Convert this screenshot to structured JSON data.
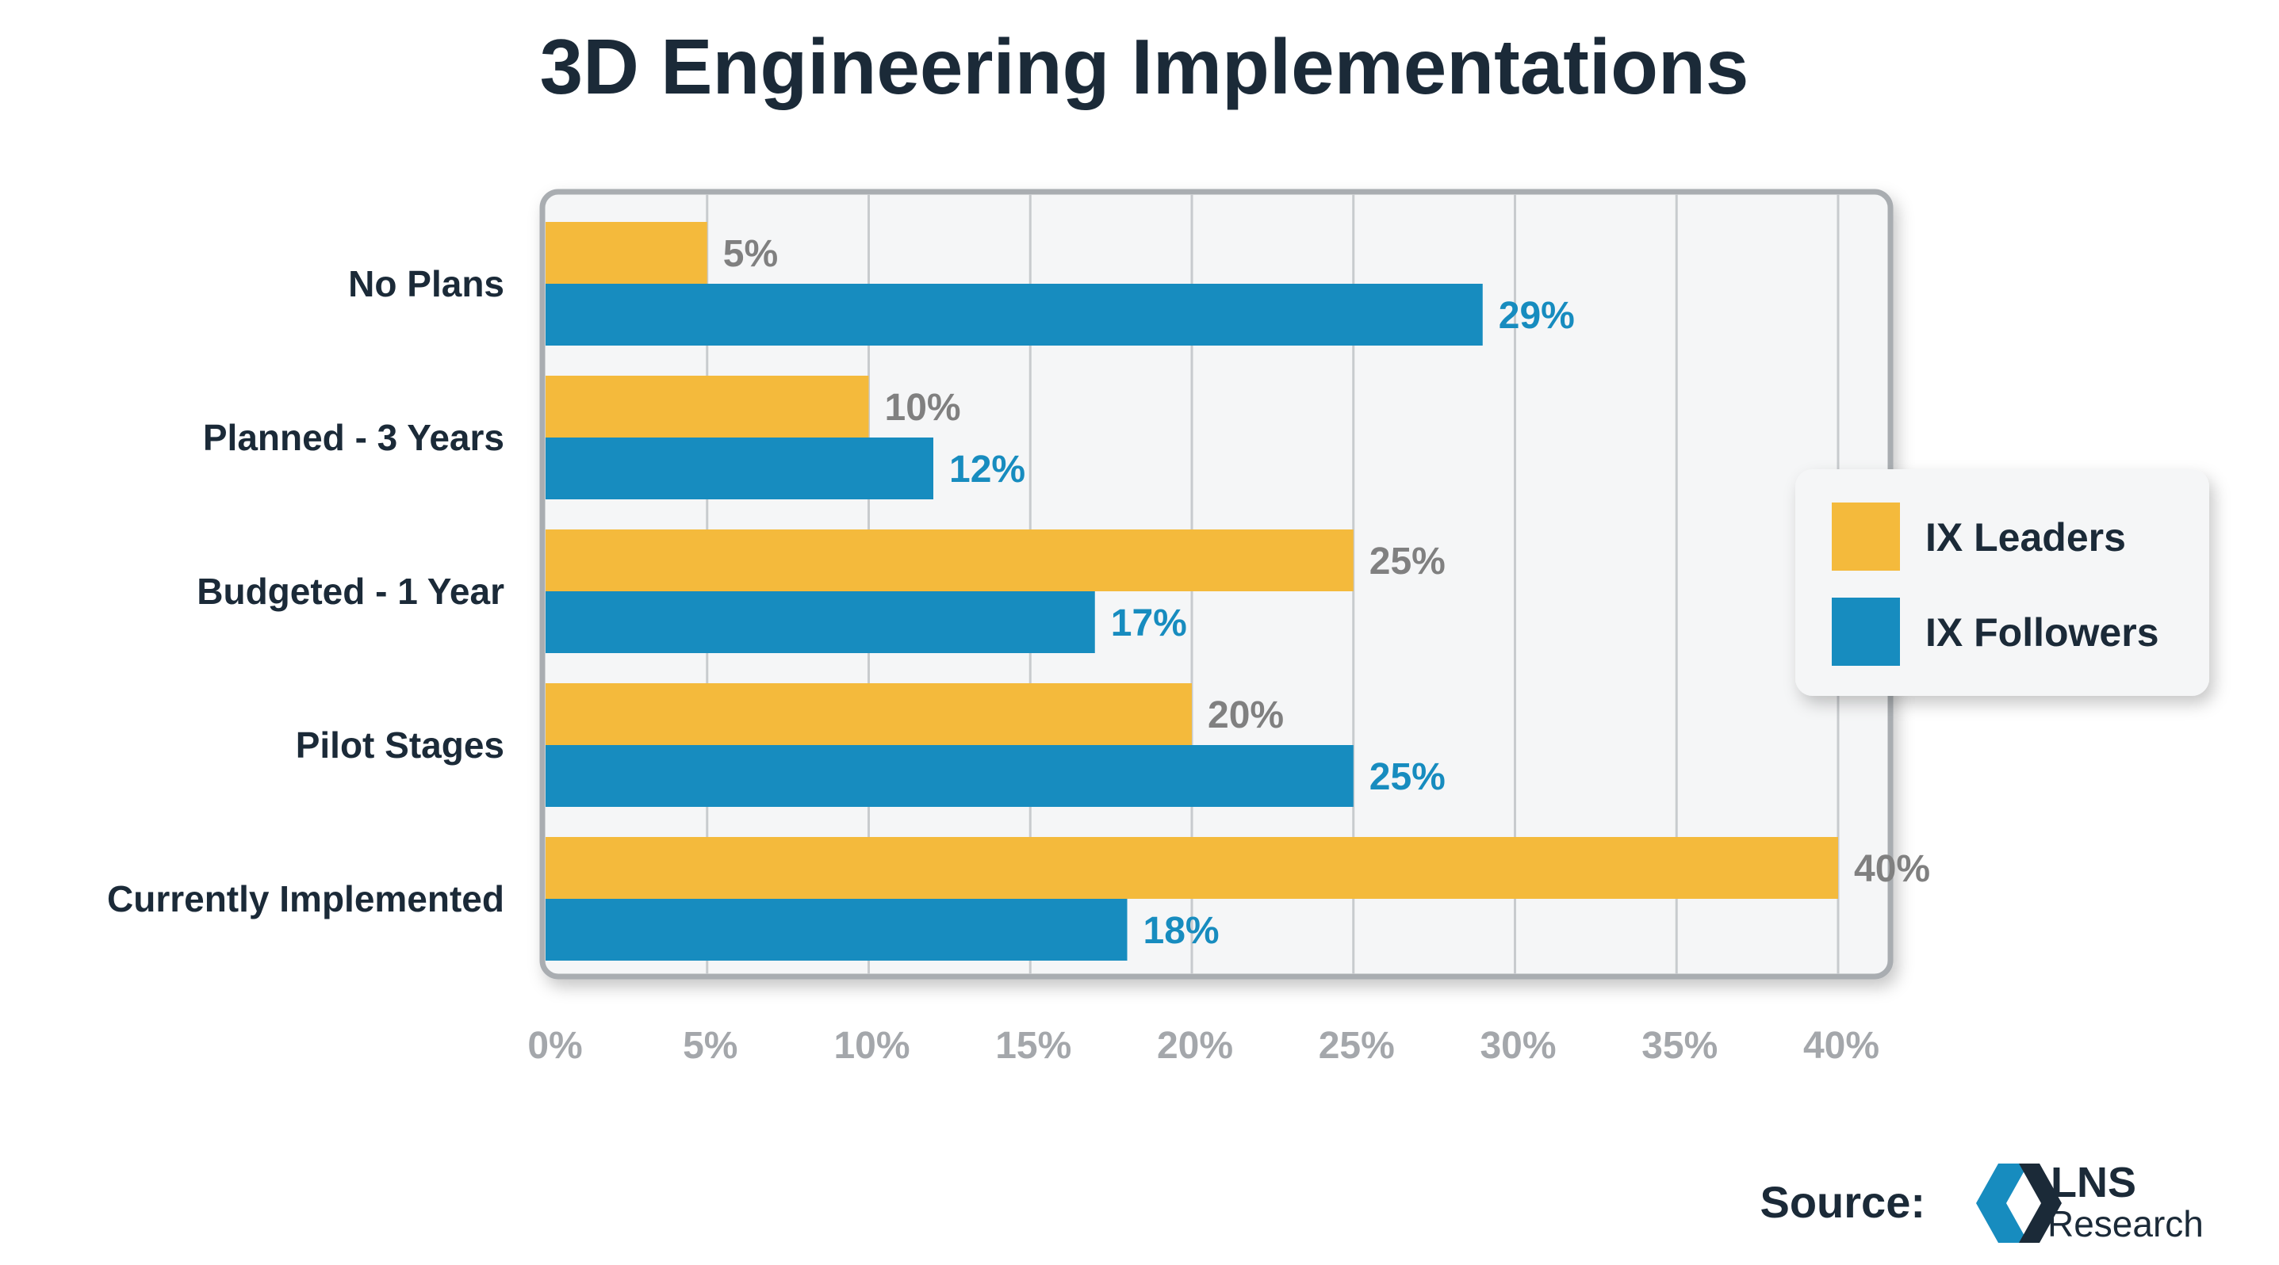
{
  "colors": {
    "leaders": "#F4BA3C",
    "followers": "#178CBF",
    "title": "#1B2A38",
    "category_text": "#1B2A38",
    "leader_label": "#808080",
    "follower_label": "#178CBF",
    "tick": "#A4A7AB",
    "panel_bg": "#F5F6F7",
    "panel_border": "#A9ADB1",
    "grid": "#C8CBCE"
  },
  "chart_data": {
    "type": "bar",
    "orientation": "horizontal",
    "title": "3D Engineering Implementations",
    "categories": [
      "No Plans",
      "Planned - 3 Years",
      "Budgeted - 1 Year",
      "Pilot Stages",
      "Currently Implemented"
    ],
    "series": [
      {
        "name": "IX Leaders",
        "values": [
          5,
          10,
          25,
          20,
          40
        ],
        "labels": [
          "5%",
          "10%",
          "25%",
          "20%",
          "40%"
        ]
      },
      {
        "name": "IX Followers",
        "values": [
          29,
          12,
          17,
          25,
          18
        ],
        "labels": [
          "29%",
          "12%",
          "17%",
          "25%",
          "18%"
        ]
      }
    ],
    "xlim": [
      0,
      40
    ],
    "ticks": [
      0,
      5,
      10,
      15,
      20,
      25,
      30,
      35,
      40
    ],
    "tick_labels": [
      "0%",
      "5%",
      "10%",
      "15%",
      "20%",
      "25%",
      "30%",
      "35%",
      "40%"
    ],
    "grid": true,
    "legend_position": "right"
  },
  "source": {
    "label": "Source:",
    "logo_top": "LNS",
    "logo_bottom": "Research"
  }
}
